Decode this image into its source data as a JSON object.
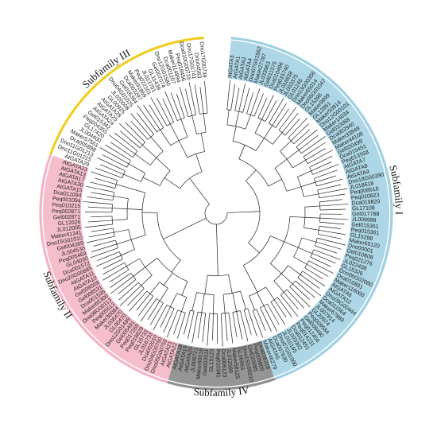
{
  "figure": {
    "subfamilies": [
      {
        "id": "I",
        "label": "Subfamily I",
        "color": "#9fd0e2"
      },
      {
        "id": "III",
        "label": "Subfamily III",
        "color": "#f2cc1a"
      },
      {
        "id": "II",
        "label": "Subfamily II",
        "color": "#f5b3c4"
      },
      {
        "id": "IV",
        "label": "Subfamily IV",
        "color": "#8f8f8f"
      }
    ],
    "leaves": [
      {
        "name": "AtGATA3",
        "group": "I"
      },
      {
        "name": "AtGATA1",
        "group": "I"
      },
      {
        "name": "AtGATA2",
        "group": "I"
      },
      {
        "name": "AtGATA4",
        "group": "I"
      },
      {
        "name": "Dno07G01562",
        "group": "I"
      },
      {
        "name": "Maker27787",
        "group": "I"
      },
      {
        "name": "JL033963",
        "group": "I"
      },
      {
        "name": "Gel011575",
        "group": "I"
      },
      {
        "name": "Dca010496",
        "group": "I"
      },
      {
        "name": "Peq015740",
        "group": "I"
      },
      {
        "name": "JL018838",
        "group": "I"
      },
      {
        "name": "JL003375",
        "group": "I"
      },
      {
        "name": "GL01245",
        "group": "I"
      },
      {
        "name": "Dno13G00356",
        "group": "I"
      },
      {
        "name": "Maker65014",
        "group": "I"
      },
      {
        "name": "Dno05G01047",
        "group": "I"
      },
      {
        "name": "GL15396",
        "group": "I"
      },
      {
        "name": "Maker9999",
        "group": "I"
      },
      {
        "name": "GL12851",
        "group": "I"
      },
      {
        "name": "Maker50914",
        "group": "I"
      },
      {
        "name": "Dno12G00101",
        "group": "I"
      },
      {
        "name": "Maker14034",
        "group": "I"
      },
      {
        "name": "Gel010088",
        "group": "I"
      },
      {
        "name": "Dca002940",
        "group": "I"
      },
      {
        "name": "Maker33849",
        "group": "I"
      },
      {
        "name": "Maker44108",
        "group": "I"
      },
      {
        "name": "Gel020499",
        "group": "I"
      },
      {
        "name": "Dca015451",
        "group": "I"
      },
      {
        "name": "Peq013558",
        "group": "I"
      },
      {
        "name": "AtGATA7",
        "group": "I"
      },
      {
        "name": "AtGATA8",
        "group": "I"
      },
      {
        "name": "AtGATA9",
        "group": "I"
      },
      {
        "name": "Dno18G00390",
        "group": "I"
      },
      {
        "name": "JL018618",
        "group": "I"
      },
      {
        "name": "Peq008618",
        "group": "I"
      },
      {
        "name": "Peq010823",
        "group": "I"
      },
      {
        "name": "Dca019820",
        "group": "I"
      },
      {
        "name": "GL17108",
        "group": "I"
      },
      {
        "name": "Gel017788",
        "group": "I"
      },
      {
        "name": "JL009998",
        "group": "I"
      },
      {
        "name": "Gel015361",
        "group": "I"
      },
      {
        "name": "Peq015361",
        "group": "I"
      },
      {
        "name": "GL15288",
        "group": "I"
      },
      {
        "name": "Maker65120",
        "group": "I"
      },
      {
        "name": "Dno00001",
        "group": "I"
      },
      {
        "name": "Gel010808",
        "group": "I"
      },
      {
        "name": "Peq021276",
        "group": "I"
      },
      {
        "name": "JL022408",
        "group": "I"
      },
      {
        "name": "GL15326",
        "group": "I"
      },
      {
        "name": "Dno06G02080",
        "group": "I"
      },
      {
        "name": "Dca016891",
        "group": "I"
      },
      {
        "name": "Maker116000",
        "group": "I"
      },
      {
        "name": "AtGATA6",
        "group": "I"
      },
      {
        "name": "AtGATA12",
        "group": "I"
      },
      {
        "name": "Dno09G00444",
        "group": "I"
      },
      {
        "name": "Dca011564",
        "group": "I"
      },
      {
        "name": "Maker67889",
        "group": "I"
      },
      {
        "name": "JL007814",
        "group": "I"
      },
      {
        "name": "GL20974",
        "group": "I"
      },
      {
        "name": "Peq009584",
        "group": "I"
      },
      {
        "name": "Gel009490",
        "group": "I"
      },
      {
        "name": "Peq012456",
        "group": "I"
      },
      {
        "name": "Peq014231",
        "group": "I"
      },
      {
        "name": "Dca012451",
        "group": "I"
      },
      {
        "name": "JL003302",
        "group": "I"
      },
      {
        "name": "JL010165",
        "group": "I"
      },
      {
        "name": "Dno07G01000",
        "group": "I"
      },
      {
        "name": "Dca007630",
        "group": "I"
      },
      {
        "name": "AtGATA5",
        "group": "I"
      },
      {
        "name": "Maker46279",
        "group": "I"
      },
      {
        "name": "Dca016316",
        "group": "IV"
      },
      {
        "name": "Peq005800",
        "group": "IV"
      },
      {
        "name": "Gel020085",
        "group": "IV"
      },
      {
        "name": "Dno15G00210",
        "group": "IV"
      },
      {
        "name": "GL06963",
        "group": "IV"
      },
      {
        "name": "Maker58125",
        "group": "IV"
      },
      {
        "name": "JL012589",
        "group": "IV"
      },
      {
        "name": "Dca006123",
        "group": "IV"
      },
      {
        "name": "Peq010341",
        "group": "IV"
      },
      {
        "name": "GL15123",
        "group": "IV"
      },
      {
        "name": "Gel002011",
        "group": "IV"
      },
      {
        "name": "Maker60018",
        "group": "IV"
      },
      {
        "name": "JL008721",
        "group": "IV"
      },
      {
        "name": "AtGATA20",
        "group": "IV"
      },
      {
        "name": "AtGATA19",
        "group": "IV"
      },
      {
        "name": "AtGATA18",
        "group": "IV"
      },
      {
        "name": "AtGATA22",
        "group": "II"
      },
      {
        "name": "AtGATA21",
        "group": "II"
      },
      {
        "name": "Dno05G00750",
        "group": "II"
      },
      {
        "name": "Dno04G00750",
        "group": "II"
      },
      {
        "name": "Dca002010",
        "group": "II"
      },
      {
        "name": "JL016733",
        "group": "II"
      },
      {
        "name": "GL16733",
        "group": "II"
      },
      {
        "name": "Peq018829",
        "group": "II"
      },
      {
        "name": "Peq017269",
        "group": "II"
      },
      {
        "name": "Gel005491",
        "group": "II"
      },
      {
        "name": "Dno12G01499",
        "group": "II"
      },
      {
        "name": "GL00470",
        "group": "II"
      },
      {
        "name": "JL006470",
        "group": "II"
      },
      {
        "name": "Maker30084",
        "group": "II"
      },
      {
        "name": "Peq005513",
        "group": "II"
      },
      {
        "name": "Dno08G00113",
        "group": "II"
      },
      {
        "name": "Maker65300",
        "group": "II"
      },
      {
        "name": "Dca001535",
        "group": "II"
      },
      {
        "name": "Gel008531",
        "group": "II"
      },
      {
        "name": "Gel008008",
        "group": "II"
      },
      {
        "name": "AtGATA10",
        "group": "II"
      },
      {
        "name": "AtGATA11",
        "group": "II"
      },
      {
        "name": "Dno20G00885",
        "group": "II"
      },
      {
        "name": "Dca001572",
        "group": "II"
      },
      {
        "name": "GL04030",
        "group": "II"
      },
      {
        "name": "Peq005469",
        "group": "II"
      },
      {
        "name": "JL004530",
        "group": "II"
      },
      {
        "name": "Gel004369",
        "group": "II"
      },
      {
        "name": "Dno15G01010",
        "group": "II"
      },
      {
        "name": "Maker41341",
        "group": "II"
      },
      {
        "name": "JL012005",
        "group": "II"
      },
      {
        "name": "GL12026",
        "group": "II"
      },
      {
        "name": "Gel002871",
        "group": "II"
      },
      {
        "name": "Peq002871",
        "group": "II"
      },
      {
        "name": "Peq010215",
        "group": "II"
      },
      {
        "name": "Peq001094",
        "group": "II"
      },
      {
        "name": "Dca011094",
        "group": "II"
      },
      {
        "name": "AtGATA15",
        "group": "II"
      },
      {
        "name": "AtGATA30",
        "group": "II"
      },
      {
        "name": "AtGATA17",
        "group": "II"
      },
      {
        "name": "AtGATA13",
        "group": "II"
      },
      {
        "name": "AtGATA23",
        "group": "II"
      },
      {
        "name": "AtGATA29",
        "group": "III"
      },
      {
        "name": "Dno11G01215",
        "group": "III"
      },
      {
        "name": "Dno11G01213",
        "group": "III"
      },
      {
        "name": "Dca005898",
        "group": "III"
      },
      {
        "name": "Maker57561",
        "group": "III"
      },
      {
        "name": "JL004400",
        "group": "III"
      },
      {
        "name": "GL17420",
        "group": "III"
      },
      {
        "name": "Peq004355",
        "group": "III"
      },
      {
        "name": "Gel015342",
        "group": "III"
      },
      {
        "name": "AtGATA24",
        "group": "III"
      },
      {
        "name": "AtGATA25",
        "group": "III"
      },
      {
        "name": "AtGATA28",
        "group": "III"
      },
      {
        "name": "GL00925",
        "group": "III"
      },
      {
        "name": "JL020008",
        "group": "III"
      },
      {
        "name": "Dno04G01025",
        "group": "III"
      },
      {
        "name": "Gel016384",
        "group": "III"
      },
      {
        "name": "Dca003297",
        "group": "III"
      },
      {
        "name": "Maker91869",
        "group": "III"
      },
      {
        "name": "Peq022101",
        "group": "III"
      },
      {
        "name": "JL013701",
        "group": "III"
      },
      {
        "name": "GL11439",
        "group": "III"
      },
      {
        "name": "Gel007074",
        "group": "III"
      },
      {
        "name": "Dno12G01580",
        "group": "III"
      },
      {
        "name": "Dca001207",
        "group": "III"
      },
      {
        "name": "Maker114894",
        "group": "III"
      },
      {
        "name": "Peq018456",
        "group": "III"
      },
      {
        "name": "Dca010G00715",
        "group": "III"
      },
      {
        "name": "Dno17G01741",
        "group": "III"
      },
      {
        "name": "Dno04563",
        "group": "III"
      },
      {
        "name": "Dno17G00739",
        "group": "III"
      }
    ]
  }
}
